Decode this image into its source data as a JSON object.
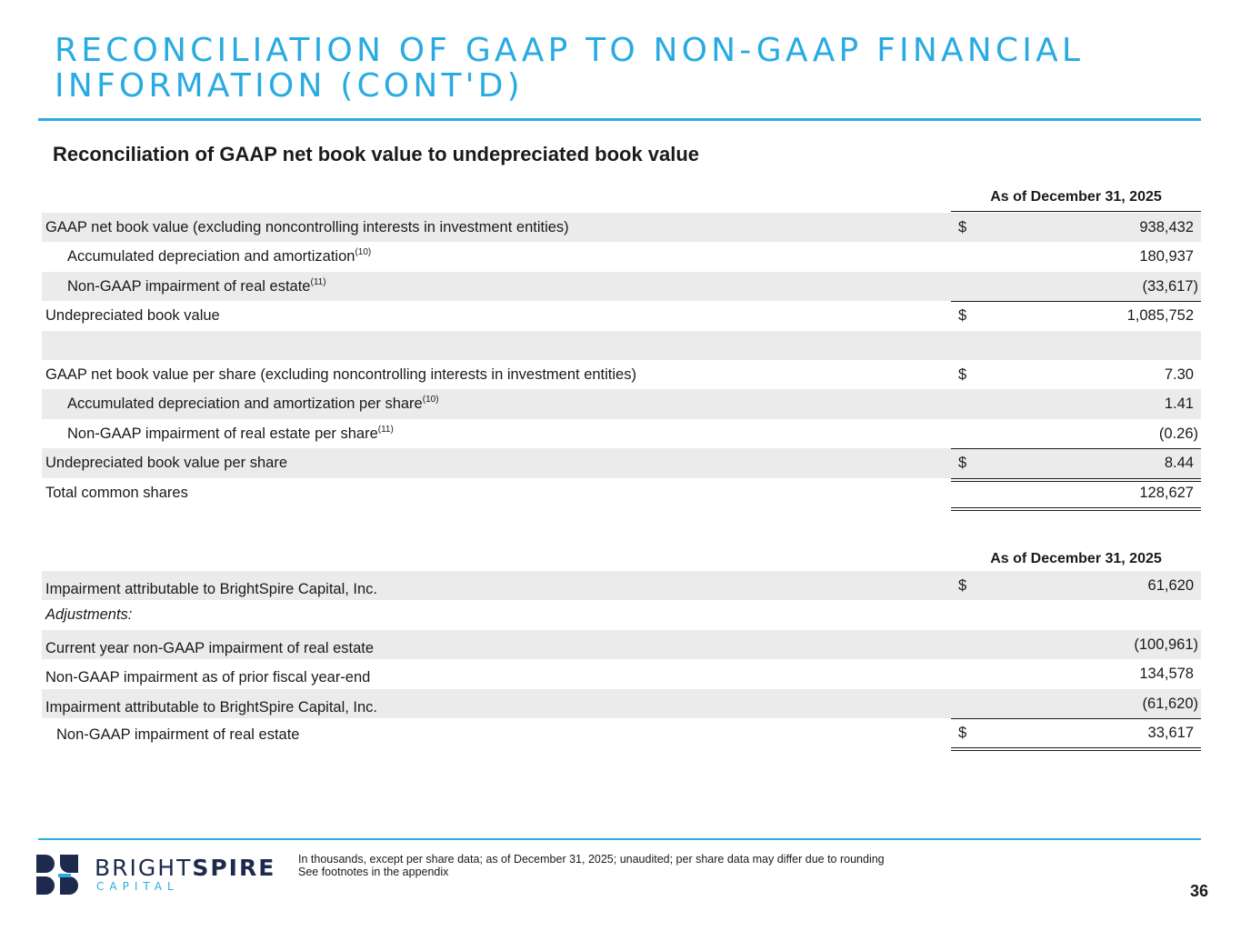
{
  "title": "RECONCILIATION OF GAAP TO NON-GAAP FINANCIAL INFORMATION (CONT'D)",
  "subtitle": "Reconciliation of GAAP net book value to undepreciated book value",
  "table1": {
    "column_header": "As of December 31, 2025",
    "rows": [
      {
        "label": "GAAP net book value (excluding noncontrolling interests in investment entities)",
        "sup": "",
        "dollar": "$",
        "value": "938,432"
      },
      {
        "label": "Accumulated depreciation and amortization",
        "sup": "(10)",
        "dollar": "",
        "value": "180,937"
      },
      {
        "label": "Non-GAAP impairment of real estate",
        "sup": "(11)",
        "dollar": "",
        "value": "(33,617)"
      },
      {
        "label": "Undepreciated book value",
        "sup": "",
        "dollar": "$",
        "value": "1,085,752"
      },
      {
        "label": "",
        "sup": "",
        "dollar": "",
        "value": ""
      },
      {
        "label": "GAAP net book value per share (excluding noncontrolling interests in investment entities)",
        "sup": "",
        "dollar": "$",
        "value": "7.30"
      },
      {
        "label": "Accumulated depreciation and amortization per share",
        "sup": "(10)",
        "dollar": "",
        "value": "1.41"
      },
      {
        "label": "Non-GAAP impairment of real estate per share",
        "sup": "(11)",
        "dollar": "",
        "value": "(0.26)"
      },
      {
        "label": "Undepreciated book value per share",
        "sup": "",
        "dollar": "$",
        "value": "8.44"
      },
      {
        "label": "Total common shares",
        "sup": "",
        "dollar": "",
        "value": "128,627"
      }
    ]
  },
  "table2": {
    "column_header": "As of December 31, 2025",
    "rows": [
      {
        "label": "Impairment attributable to BrightSpire Capital, Inc.",
        "dollar": "$",
        "value": "61,620"
      },
      {
        "label": "Adjustments:",
        "dollar": "",
        "value": ""
      },
      {
        "label": "Current year non-GAAP impairment of real estate",
        "dollar": "",
        "value": "(100,961)"
      },
      {
        "label": "Non-GAAP impairment as of prior fiscal year-end",
        "dollar": "",
        "value": "134,578"
      },
      {
        "label": "Impairment attributable to BrightSpire Capital, Inc.",
        "dollar": "",
        "value": "(61,620)"
      },
      {
        "label": "Non-GAAP impairment of real estate",
        "dollar": "$",
        "value": "33,617"
      }
    ]
  },
  "footer": {
    "logo_word_light": "BRIGHT",
    "logo_word_bold": "SPIRE",
    "logo_sub": "CAPITAL",
    "note_line1": "In thousands, except per share data; as of December 31, 2025; unaudited; per share data may differ due to rounding",
    "note_line2": "See footnotes in the appendix",
    "page_number": "36",
    "logo_icon": "brightspire-logo-mark",
    "brand_color": "#29abe2",
    "logo_dark_color": "#1d2a4d"
  }
}
